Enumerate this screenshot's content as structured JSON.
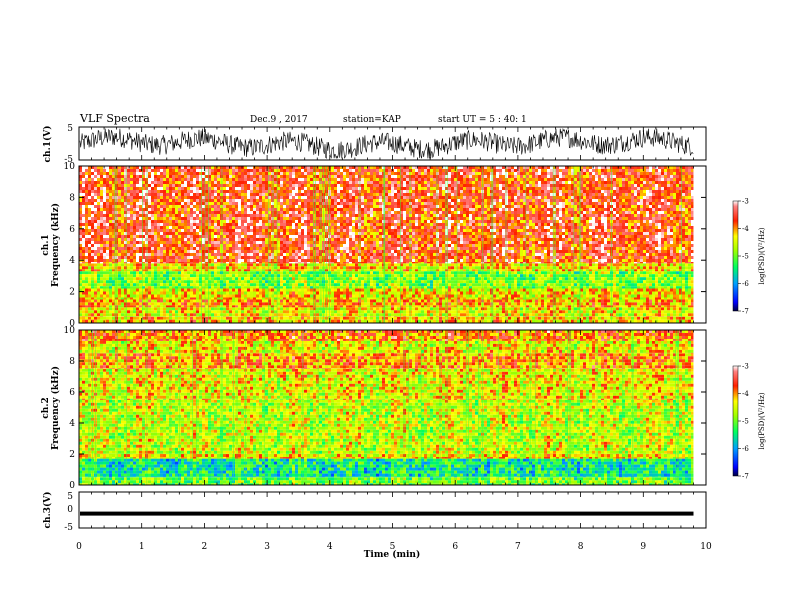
{
  "header": {
    "title": "VLF Spectra",
    "date": "Dec.9 , 2017",
    "station": "station=KAP",
    "start_ut": "start UT = 5 : 40: 1"
  },
  "chart_data": [
    {
      "type": "line",
      "panel": "ch1-waveform",
      "ylabel": "ch.1(V)",
      "ylim": [
        -5,
        5
      ],
      "yticks": [
        "5",
        "-5"
      ],
      "x_range_min": [
        0,
        9.8
      ],
      "description_series": "noisy waveform oscillating roughly between -4 and 4 V",
      "color": "#000000"
    },
    {
      "type": "heatmap",
      "panel": "ch1-spectrogram",
      "ylabel_line1": "ch.1",
      "ylabel_line2": "Frequency (kHz)",
      "ylim": [
        0,
        10
      ],
      "yticks": [
        "0",
        "2",
        "4",
        "6",
        "8",
        "10"
      ],
      "x_range_min": [
        0,
        9.8
      ],
      "bands_khz": [
        {
          "from": 0,
          "to": 0.4,
          "level": -4.2
        },
        {
          "from": 0.4,
          "to": 1.0,
          "level": -4.4
        },
        {
          "from": 1.0,
          "to": 1.5,
          "level": -4.1
        },
        {
          "from": 1.5,
          "to": 2.2,
          "level": -4.3
        },
        {
          "from": 2.2,
          "to": 3.3,
          "level": -4.9
        },
        {
          "from": 3.3,
          "to": 3.8,
          "level": -4.3
        },
        {
          "from": 3.8,
          "to": 10,
          "level": -3.6
        }
      ],
      "colorbar": {
        "label": "log(PSD)(V²/Hz)",
        "range": [
          -7,
          -3
        ],
        "ticks": [
          "-3",
          "-4",
          "-5",
          "-6",
          "-7"
        ]
      }
    },
    {
      "type": "heatmap",
      "panel": "ch2-spectrogram",
      "ylabel_line1": "ch.2",
      "ylabel_line2": "Frequency (kHz)",
      "ylim": [
        0,
        10
      ],
      "yticks": [
        "0",
        "2",
        "4",
        "6",
        "8",
        "10"
      ],
      "x_range_min": [
        0,
        9.8
      ],
      "bands_khz": [
        {
          "from": 0,
          "to": 0.5,
          "level": -5.0
        },
        {
          "from": 0.5,
          "to": 1.7,
          "level": -5.5
        },
        {
          "from": 1.7,
          "to": 2.0,
          "level": -4.3
        },
        {
          "from": 2.0,
          "to": 5.5,
          "level": -4.6
        },
        {
          "from": 5.5,
          "to": 7.5,
          "level": -4.4
        },
        {
          "from": 7.5,
          "to": 8.5,
          "level": -4.0
        },
        {
          "from": 8.5,
          "to": 9.3,
          "level": -4.4
        },
        {
          "from": 9.3,
          "to": 10,
          "level": -3.9
        }
      ],
      "colorbar": {
        "label": "log(PSD)(V²/Hz)",
        "range": [
          -7,
          -3
        ],
        "ticks": [
          "-3",
          "-4",
          "-5",
          "-6",
          "-7"
        ]
      }
    },
    {
      "type": "line",
      "panel": "ch3-waveform",
      "ylabel": "ch.3(V)",
      "ylim": [
        -5,
        5
      ],
      "yticks": [
        "5",
        "0",
        "-5"
      ],
      "x_range_min": [
        0,
        9.8
      ],
      "level_v": -1,
      "color": "#000000"
    }
  ],
  "x_axis": {
    "label": "Time (min)",
    "range": [
      0,
      10
    ],
    "ticks": [
      "0",
      "1",
      "2",
      "3",
      "4",
      "5",
      "6",
      "7",
      "8",
      "9",
      "10"
    ]
  }
}
